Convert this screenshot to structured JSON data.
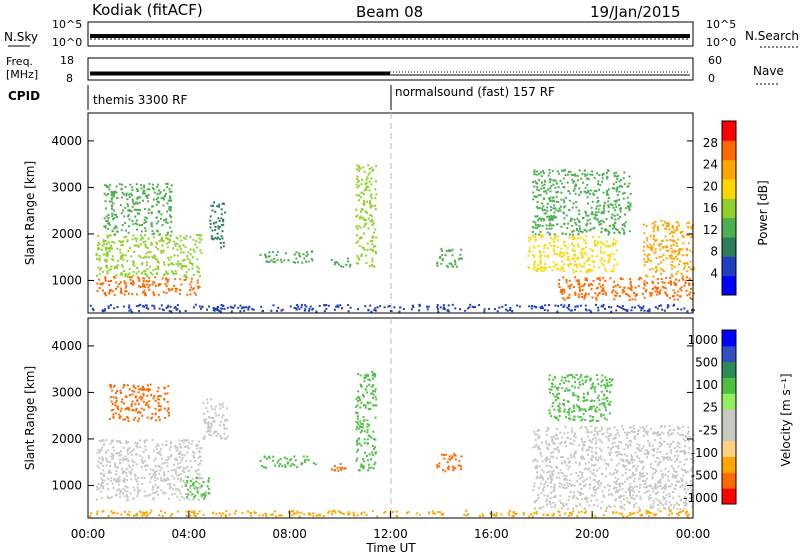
{
  "header": {
    "station": "Kodiak (fitACF)",
    "beam": "Beam 08",
    "date": "19/Jan/2015"
  },
  "summary": {
    "nsky_label": "N.Sky",
    "nsky_ticks": [
      "10^5",
      "10^0"
    ],
    "nsearch_label": "N.Search",
    "freq_label_1": "Freq.",
    "freq_label_2": "[MHz]",
    "freq_ticks": [
      "18",
      "8"
    ],
    "nave_label": "Nave",
    "nave_ticks": [
      "60",
      "0"
    ],
    "cpid_label": "CPID",
    "cpid_segments": [
      {
        "label": "themis 3300 RF",
        "start_hour": 0,
        "end_hour": 12
      },
      {
        "label": "normalsound (fast) 157 RF",
        "start_hour": 12,
        "end_hour": 24
      }
    ]
  },
  "colors": {
    "power_scale": [
      "#0000ff",
      "#1f3fbf",
      "#2e7d5a",
      "#4caf50",
      "#8fd12a",
      "#ffd700",
      "#ffa500",
      "#ff6a00",
      "#ff0000"
    ],
    "velocity_scale": [
      "#ff0000",
      "#ff6a00",
      "#ffa500",
      "#ffd280",
      "#c8c8c0",
      "#c8c8c0",
      "#90ee60",
      "#4cc040",
      "#2e8b57",
      "#3050c0",
      "#0000ff"
    ],
    "ground_scatter": "#c8c8c0"
  },
  "chart_data": [
    {
      "type": "heatmap",
      "panel": "power",
      "title": "",
      "xlabel": "",
      "ylabel": "Slant Range [km]",
      "xlim": [
        0,
        24
      ],
      "ylim": [
        300,
        4600
      ],
      "y_ticks": [
        1000,
        2000,
        3000,
        4000
      ],
      "colorbar": {
        "label": "Power [dB]",
        "range": [
          0,
          32
        ],
        "ticks": [
          4,
          8,
          12,
          16,
          20,
          24,
          28
        ]
      },
      "regions": [
        {
          "x0": 0.3,
          "x1": 4.5,
          "y0": 700,
          "y1": 1100,
          "value": 27
        },
        {
          "x0": 0.3,
          "x1": 4.5,
          "y0": 1100,
          "y1": 2000,
          "value": 16
        },
        {
          "x0": 0.6,
          "x1": 3.3,
          "y0": 2000,
          "y1": 3100,
          "value": 12
        },
        {
          "x0": 4.8,
          "x1": 5.4,
          "y0": 1700,
          "y1": 2700,
          "value": 9
        },
        {
          "x0": 6.8,
          "x1": 9.0,
          "y0": 1400,
          "y1": 1650,
          "value": 13
        },
        {
          "x0": 9.6,
          "x1": 10.4,
          "y0": 1300,
          "y1": 1500,
          "value": 14
        },
        {
          "x0": 10.6,
          "x1": 11.4,
          "y0": 1300,
          "y1": 3500,
          "value": 15
        },
        {
          "x0": 13.8,
          "x1": 14.8,
          "y0": 1300,
          "y1": 1700,
          "value": 12
        },
        {
          "x0": 17.4,
          "x1": 21.0,
          "y0": 1200,
          "y1": 2000,
          "value": 18
        },
        {
          "x0": 18.6,
          "x1": 24.0,
          "y0": 600,
          "y1": 1100,
          "value": 28
        },
        {
          "x0": 17.6,
          "x1": 21.5,
          "y0": 2000,
          "y1": 3400,
          "value": 12
        },
        {
          "x0": 22.0,
          "x1": 24.0,
          "y0": 1100,
          "y1": 2300,
          "value": 22
        },
        {
          "x0": 0.0,
          "x1": 24.0,
          "y0": 350,
          "y1": 500,
          "value": 6
        }
      ]
    },
    {
      "type": "heatmap",
      "panel": "velocity",
      "title": "",
      "xlabel": "Time UT",
      "ylabel": "Slant Range [km]",
      "xlim": [
        0,
        24
      ],
      "ylim": [
        300,
        4600
      ],
      "x_ticks": [
        "00:00",
        "04:00",
        "08:00",
        "12:00",
        "16:00",
        "20:00",
        "00:00"
      ],
      "y_ticks": [
        1000,
        2000,
        3000,
        4000
      ],
      "colorbar": {
        "label": "Velocity [m s⁻¹]",
        "ticks": [
          "1000",
          "500",
          "100",
          "25",
          "-25",
          "-100",
          "-500",
          "-1000"
        ]
      },
      "regions": [
        {
          "x0": 0.3,
          "x1": 4.5,
          "y0": 700,
          "y1": 2000,
          "value": 0
        },
        {
          "x0": 4.5,
          "x1": 5.5,
          "y0": 2000,
          "y1": 2900,
          "value": 0
        },
        {
          "x0": 0.8,
          "x1": 3.2,
          "y0": 2400,
          "y1": 3200,
          "value": -120
        },
        {
          "x0": 3.8,
          "x1": 4.8,
          "y0": 700,
          "y1": 1200,
          "value": 150
        },
        {
          "x0": 6.8,
          "x1": 9.0,
          "y0": 1400,
          "y1": 1650,
          "value": 150
        },
        {
          "x0": 9.6,
          "x1": 10.4,
          "y0": 1300,
          "y1": 1500,
          "value": -150
        },
        {
          "x0": 10.6,
          "x1": 11.4,
          "y0": 1300,
          "y1": 3500,
          "value": 200
        },
        {
          "x0": 13.8,
          "x1": 14.8,
          "y0": 1300,
          "y1": 1700,
          "value": -250
        },
        {
          "x0": 17.6,
          "x1": 24.0,
          "y0": 500,
          "y1": 2300,
          "value": 0
        },
        {
          "x0": 18.2,
          "x1": 20.8,
          "y0": 2400,
          "y1": 3400,
          "value": 200
        },
        {
          "x0": 0.0,
          "x1": 24.0,
          "y0": 350,
          "y1": 480,
          "value": -60
        }
      ]
    }
  ]
}
